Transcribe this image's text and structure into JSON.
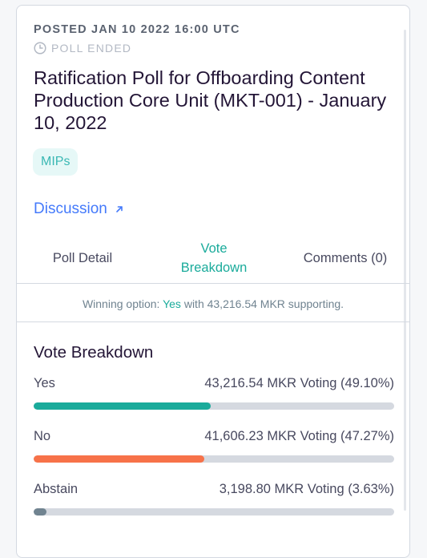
{
  "header": {
    "posted": "POSTED JAN 10 2022 16:00 UTC",
    "status": "POLL ENDED"
  },
  "title": "Ratification Poll for Offboarding Content Production Core Unit (MKT-001) - January 10, 2022",
  "tag": "MIPs",
  "discussion": {
    "label": "Discussion",
    "icon": "arrow-up-right-icon"
  },
  "tabs": [
    {
      "line1": "Poll Detail",
      "line2": ""
    },
    {
      "line1": "Vote",
      "line2": "Breakdown"
    },
    {
      "line1": "Comments (0)",
      "line2": ""
    }
  ],
  "winning": {
    "prefix": "Winning option:",
    "option": "Yes",
    "suffix": "with 43,216.54 MKR supporting."
  },
  "vote_breakdown": {
    "title": "Vote Breakdown",
    "options": [
      {
        "label": "Yes",
        "value_text": "43,216.54 MKR Voting (49.10%)",
        "percent": 49.1,
        "color": "#1aab9b"
      },
      {
        "label": "No",
        "value_text": "41,606.23 MKR Voting (47.27%)",
        "percent": 47.27,
        "color": "#f77249"
      },
      {
        "label": "Abstain",
        "value_text": "3,198.80 MKR Voting (3.63%)",
        "percent": 3.63,
        "color": "#708390"
      }
    ]
  },
  "colors": {
    "accent": "#1aab9b",
    "link": "#447afb",
    "no": "#f77249",
    "abstain": "#708390"
  }
}
